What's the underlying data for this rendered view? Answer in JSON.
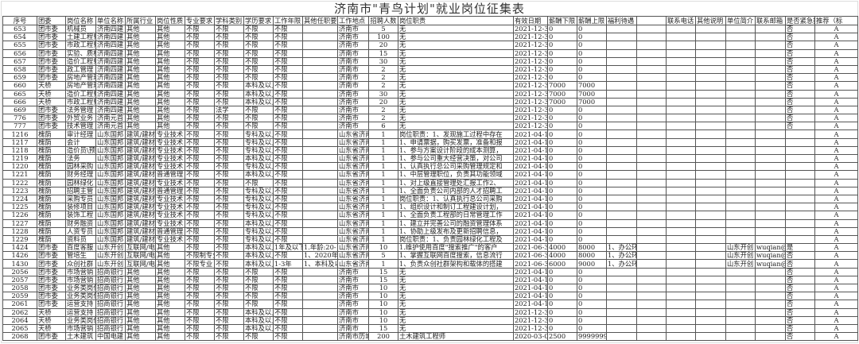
{
  "title": "济南市\"青鸟计划\"就业岗位征集表",
  "headers": [
    "序号",
    "团委",
    "岗位名称",
    "单位名称",
    "所属行业",
    "岗位性质",
    "专业要求",
    "学科类别",
    "学历要求",
    "工作年限",
    "其他任职要",
    "工作地点",
    "招聘人数",
    "岗位职责",
    "有效日期",
    "薪酬下限",
    "薪酬上限",
    "福利待遇",
    "",
    "联系电话",
    "其他说明",
    "单位简介",
    "联系邮箱",
    "是否紧急招",
    "推荐（标"
  ],
  "rows": [
    [
      "653",
      "团市委",
      "机械员",
      "济南四建",
      "其他",
      "其他",
      "不限",
      "不限",
      "不限",
      "不限",
      "",
      "济南市",
      "5",
      "无",
      "2021-12-31",
      "0",
      "0",
      "",
      "",
      "",
      "",
      "",
      "",
      "否",
      "A"
    ],
    [
      "654",
      "团市委",
      "土建工程师",
      "济南四建",
      "其他",
      "其他",
      "不限",
      "不限",
      "不限",
      "不限",
      "",
      "济南市",
      "100",
      "无",
      "2021-12-31",
      "0",
      "0",
      "",
      "",
      "",
      "",
      "",
      "",
      "否",
      "A"
    ],
    [
      "655",
      "团市委",
      "市政工程师",
      "济南四建",
      "其他",
      "其他",
      "不限",
      "不限",
      "不限",
      "不限",
      "",
      "济南市",
      "20",
      "无",
      "2021-12-31",
      "0",
      "0",
      "",
      "",
      "",
      "",
      "",
      "",
      "否",
      "A"
    ],
    [
      "656",
      "团市委",
      "实验、质检",
      "济南四建",
      "其他",
      "其他",
      "不限",
      "不限",
      "不限",
      "不限",
      "",
      "济南市",
      "15",
      "无",
      "2021-12-31",
      "0",
      "0",
      "",
      "",
      "",
      "",
      "",
      "",
      "否",
      "A"
    ],
    [
      "657",
      "团市委",
      "造价工程师",
      "济南四建",
      "其他",
      "其他",
      "不限",
      "不限",
      "不限",
      "不限",
      "",
      "济南市",
      "30",
      "无",
      "2021-12-31",
      "0",
      "0",
      "",
      "",
      "",
      "",
      "",
      "",
      "否",
      "A"
    ],
    [
      "658",
      "团市委",
      "政工管理",
      "济南四建",
      "其他",
      "其他",
      "不限",
      "不限",
      "不限",
      "不限",
      "",
      "济南市",
      "2",
      "无",
      "2021-12-31",
      "0",
      "0",
      "",
      "",
      "",
      "",
      "",
      "",
      "否",
      "A"
    ],
    [
      "659",
      "团市委",
      "房地产管理",
      "济南四建",
      "其他",
      "其他",
      "不限",
      "不限",
      "不限",
      "不限",
      "",
      "济南市",
      "2",
      "无",
      "2021-12-31",
      "0",
      "0",
      "",
      "",
      "",
      "",
      "",
      "",
      "否",
      "A"
    ],
    [
      "660",
      "天桥",
      "房地产管理",
      "济南四建",
      "其他",
      "其他",
      "不限",
      "不限",
      "本科及以上",
      "不限",
      "",
      "济南市",
      "2",
      "无",
      "2021-12-31",
      "7000",
      "7000",
      "",
      "",
      "",
      "",
      "",
      "",
      "否",
      "A"
    ],
    [
      "665",
      "天桥",
      "造价工程师",
      "济南四建",
      "其他",
      "其他",
      "不限",
      "不限",
      "本科及以上",
      "不限",
      "",
      "济南市",
      "30",
      "无",
      "2021-12-31",
      "7000",
      "7000",
      "",
      "",
      "",
      "",
      "",
      "",
      "否",
      "A"
    ],
    [
      "666",
      "天桥",
      "市政工程师",
      "济南四建",
      "其他",
      "其他",
      "不限",
      "不限",
      "本科及以上",
      "不限",
      "",
      "济南市",
      "20",
      "无",
      "2021-12-31",
      "7000",
      "7000",
      "",
      "",
      "",
      "",
      "",
      "",
      "否",
      "A"
    ],
    [
      "669",
      "团市委",
      "法务管理",
      "济南四建",
      "其他",
      "其他",
      "不限",
      "法学",
      "不限",
      "不限",
      "",
      "济南市",
      "2",
      "无",
      "2021-12-31",
      "0",
      "0",
      "",
      "",
      "",
      "",
      "",
      "",
      "否",
      "A"
    ],
    [
      "776",
      "团市委",
      "外贸业务",
      "济南元首",
      "其他",
      "其他",
      "不限",
      "不限",
      "不限",
      "不限",
      "",
      "济南市",
      "2",
      "无",
      "2021-12-31",
      "0",
      "0",
      "",
      "",
      "",
      "",
      "",
      "",
      "否",
      "A"
    ],
    [
      "777",
      "团市委",
      "技术管理",
      "济南元首",
      "其他",
      "其他",
      "不限",
      "不限",
      "不限",
      "不限",
      "",
      "济南市",
      "6",
      "无",
      "2021-12-31",
      "0",
      "0",
      "",
      "",
      "",
      "",
      "",
      "",
      "否",
      "A"
    ],
    [
      "1216",
      "槐荫",
      "审计经理",
      "山东国邦",
      "建筑/建材",
      "专业技术",
      "不限",
      "不限",
      "专科及以上",
      "不限",
      "",
      "山东省济南",
      "1",
      "岗位职责：1、发现施工过程中存在",
      "2021-04-19",
      "0",
      "0",
      "",
      "",
      "",
      "",
      "",
      "",
      "",
      "A"
    ],
    [
      "1217",
      "槐荫",
      "会计",
      "山东国邦",
      "建筑/建材",
      "专业技术",
      "不限",
      "不限",
      "专科及以上",
      "不限",
      "",
      "山东省济南",
      "1",
      "1、申请票据，购买发票，准备和报",
      "2021-04-19",
      "0",
      "0",
      "",
      "",
      "",
      "",
      "",
      "",
      "",
      "A"
    ],
    [
      "1218",
      "槐荫",
      "造价员\\预算",
      "山东国邦",
      "建筑/建材",
      "专业技术",
      "不限",
      "不限",
      "专科及以上",
      "不限",
      "",
      "山东省济南",
      "1",
      "1、参与方案设计阶段的成本测算，",
      "2021-04-19",
      "0",
      "0",
      "",
      "",
      "",
      "",
      "",
      "",
      "",
      "A"
    ],
    [
      "1219",
      "槐荫",
      "法务",
      "山东国邦",
      "建筑/建材",
      "专业技术",
      "不限",
      "不限",
      "本科及以上",
      "不限",
      "",
      "山东省济南",
      "1",
      "1、参与公司重大经营决策，对公司",
      "2021-04-19",
      "0",
      "0",
      "",
      "",
      "",
      "",
      "",
      "",
      "",
      "A"
    ],
    [
      "1220",
      "槐荫",
      "园林采购",
      "山东国邦",
      "建筑/建材",
      "专业技术",
      "不限",
      "不限",
      "专科及以上",
      "不限",
      "",
      "山东省济南",
      "1",
      "1、认真执行总公司采购管理规定和",
      "2021-04-19",
      "0",
      "0",
      "",
      "",
      "",
      "",
      "",
      "",
      "",
      "A"
    ],
    [
      "1221",
      "槐荫",
      "财务经理",
      "山东国邦",
      "建筑/建材",
      "普通管理",
      "不限",
      "不限",
      "本科及以上",
      "不限",
      "",
      "山东省济南",
      "1",
      "1、中层管理职位，负责其功能领域",
      "2021-04-19",
      "0",
      "0",
      "",
      "",
      "",
      "",
      "",
      "",
      "",
      "A"
    ],
    [
      "1222",
      "槐荫",
      "园林绿化",
      "山东国邦",
      "建筑/建材",
      "专业技术",
      "不限",
      "不限",
      "不限",
      "不限",
      "",
      "山东省济南",
      "1",
      "1、对上级直接管理处汇报工作2、",
      "2021-04-19",
      "0",
      "0",
      "",
      "",
      "",
      "",
      "",
      "",
      "",
      "A"
    ],
    [
      "1223",
      "槐荫",
      "招聘主管",
      "山东国邦",
      "建筑/建材",
      "普通管理",
      "不限",
      "不限",
      "专科及以上",
      "不限",
      "",
      "山东省济南",
      "1",
      "1、全面负责公司内部的人才招聘工",
      "2021-04-19",
      "0",
      "0",
      "",
      "",
      "",
      "",
      "",
      "",
      "",
      "A"
    ],
    [
      "1224",
      "槐荫",
      "采购专员",
      "山东国邦",
      "建筑/建材",
      "专业技术",
      "不限",
      "不限",
      "专科及以上",
      "不限",
      "",
      "山东省济南",
      "1",
      "岗位职责：1、认真执行总公司采购",
      "2021-04-19",
      "0",
      "0",
      "",
      "",
      "",
      "",
      "",
      "",
      "",
      "A"
    ],
    [
      "1225",
      "槐荫",
      "装修项目",
      "山东国邦",
      "建筑/建材",
      "专业技术",
      "不限",
      "不限",
      "专科及以上",
      "不限",
      "",
      "山东省济南",
      "1",
      "1、组织设计和制订工程建设计划，",
      "2021-04-19",
      "0",
      "0",
      "",
      "",
      "",
      "",
      "",
      "",
      "",
      "A"
    ],
    [
      "1226",
      "槐荫",
      "装饰工程",
      "山东国邦",
      "建筑/建材",
      "专业技术",
      "不限",
      "不限",
      "专科及以上",
      "不限",
      "",
      "山东省济南",
      "1",
      "1、全面负责工程部的日常管理工作",
      "2021-04-19",
      "0",
      "0",
      "",
      "",
      "",
      "",
      "",
      "",
      "",
      "A"
    ],
    [
      "1227",
      "槐荫",
      "财务融资",
      "山东国邦",
      "建筑/建材",
      "专业技术",
      "不限",
      "不限",
      "本科及以上",
      "不限",
      "",
      "山东省济南",
      "1",
      "1、建立并完善公司的融资管理体系",
      "2021-04-19",
      "0",
      "0",
      "",
      "",
      "",
      "",
      "",
      "",
      "",
      "A"
    ],
    [
      "1228",
      "槐荫",
      "人资专员",
      "山东国邦",
      "建筑/建材",
      "普通管理",
      "不限",
      "不限",
      "专科及以上",
      "不限",
      "",
      "山东省济南",
      "1",
      "1、协助上级发布及更新招聘信息，",
      "2021-04-19",
      "0",
      "0",
      "",
      "",
      "",
      "",
      "",
      "",
      "",
      "A"
    ],
    [
      "1229",
      "槐荫",
      "资料员",
      "山东国邦",
      "建筑/建材",
      "专业技术",
      "不限",
      "不限",
      "专科及以上",
      "不限",
      "",
      "山东省济南",
      "1",
      "岗位职责：1、负责园林绿化工程及",
      "2021-04-19",
      "0",
      "0",
      "",
      "",
      "",
      "",
      "",
      "",
      "",
      "A"
    ],
    [
      "1424",
      "团市委",
      "百度客服",
      "山东开创",
      "互联网/电",
      "其他",
      "不限",
      "不限",
      "本科及以上",
      "1年及以下",
      "1.年龄:20-",
      "山东省济南",
      "10",
      "1.维护使用百度\"搜索推广\"的客户",
      "2021-06-30",
      "4000",
      "8000",
      "1、办公环境：5A级写字楼（济",
      "",
      "",
      "",
      "山东开创",
      "wuqian@ct",
      "是",
      "A"
    ],
    [
      "1426",
      "团市委",
      "管培生",
      "山东开创",
      "互联网/电",
      "其他",
      "不限制专业",
      "不限",
      "本科及以上",
      "不限",
      "1、2020年应",
      "山东省济南",
      "5",
      "1、掌握互联网百度搜索，信息流行",
      "2021-06-30",
      "4000",
      "8000",
      "1、办公环境：5A级写字楼（济",
      "",
      "",
      "",
      "山东开创",
      "wuqian@ct",
      "否",
      "A"
    ],
    [
      "1430",
      "团市委",
      "众创社群",
      "山东开创",
      "互联网/电",
      "其他",
      "不限专业",
      "不限",
      "本科及以上",
      "1-3年",
      "1、本科及以",
      "山东省济南",
      "1",
      "1、负责众创社群架构和载体的搭建",
      "2021-06-30",
      "6000",
      "9000",
      "1、办公环境：5A级写字楼（济",
      "",
      "",
      "",
      "山东开创",
      "wuqian@ct",
      "否",
      "A"
    ],
    [
      "2056",
      "团市委",
      "市场营销",
      "招商银行",
      "其他",
      "其他",
      "不限",
      "不限",
      "不限",
      "不限",
      "",
      "济南市",
      "15",
      "无",
      "2021-04-19",
      "0",
      "0",
      "",
      "",
      "",
      "",
      "",
      "",
      "否",
      "A"
    ],
    [
      "2057",
      "团市委",
      "市场营销",
      "招商银行",
      "其他",
      "其他",
      "不限",
      "不限",
      "不限",
      "不限",
      "",
      "济南市",
      "15",
      "无",
      "2021-04-19",
      "0",
      "0",
      "",
      "",
      "",
      "",
      "",
      "",
      "否",
      "A"
    ],
    [
      "2058",
      "团市委",
      "业务类岗位",
      "招商银行",
      "其他",
      "其他",
      "不限",
      "不限",
      "不限",
      "不限",
      "",
      "济南市",
      "10",
      "无",
      "2021-04-19",
      "0",
      "0",
      "",
      "",
      "",
      "",
      "",
      "",
      "否",
      "A"
    ],
    [
      "2059",
      "团市委",
      "业务类岗位",
      "招商银行",
      "其他",
      "其他",
      "不限",
      "不限",
      "不限",
      "不限",
      "",
      "济南市",
      "10",
      "无",
      "2021-04-19",
      "0",
      "0",
      "",
      "",
      "",
      "",
      "",
      "",
      "否",
      "A"
    ],
    [
      "2061",
      "团市委",
      "运营支持",
      "招商银行",
      "其他",
      "其他",
      "不限",
      "不限",
      "不限",
      "不限",
      "",
      "济南市",
      "10",
      "无",
      "2021-04-19",
      "0",
      "0",
      "",
      "",
      "",
      "",
      "",
      "",
      "否",
      "A"
    ],
    [
      "2062",
      "天桥",
      "运营支持",
      "招商银行",
      "其他",
      "其他",
      "不限",
      "不限",
      "本科及以上",
      "不限",
      "",
      "济南市",
      "10",
      "无",
      "2021-12-31",
      "0",
      "0",
      "",
      "",
      "",
      "",
      "",
      "",
      "否",
      "A"
    ],
    [
      "2064",
      "天桥",
      "业务类岗位",
      "招商银行",
      "其他",
      "其他",
      "不限",
      "不限",
      "本科及以上",
      "不限",
      "",
      "济南市",
      "10",
      "无",
      "2021-12-31",
      "0",
      "0",
      "",
      "",
      "",
      "",
      "",
      "",
      "否",
      "A"
    ],
    [
      "2065",
      "天桥",
      "市场营销",
      "招商银行",
      "其他",
      "其他",
      "不限",
      "不限",
      "本科及以上",
      "不限",
      "",
      "济南市",
      "15",
      "无",
      "2021-12-31",
      "0",
      "0",
      "",
      "",
      "",
      "",
      "",
      "",
      "否",
      "A"
    ],
    [
      "2068",
      "团市委",
      "土木建筑",
      "中国电建",
      "其他",
      "其他",
      "不限",
      "不限",
      "不限",
      "不限",
      "",
      "济南市历城",
      "200",
      "土木建筑工程师",
      "2020-03-02",
      "2500",
      "9999999",
      "",
      "",
      "",
      "",
      "",
      "",
      "否",
      "A"
    ]
  ]
}
